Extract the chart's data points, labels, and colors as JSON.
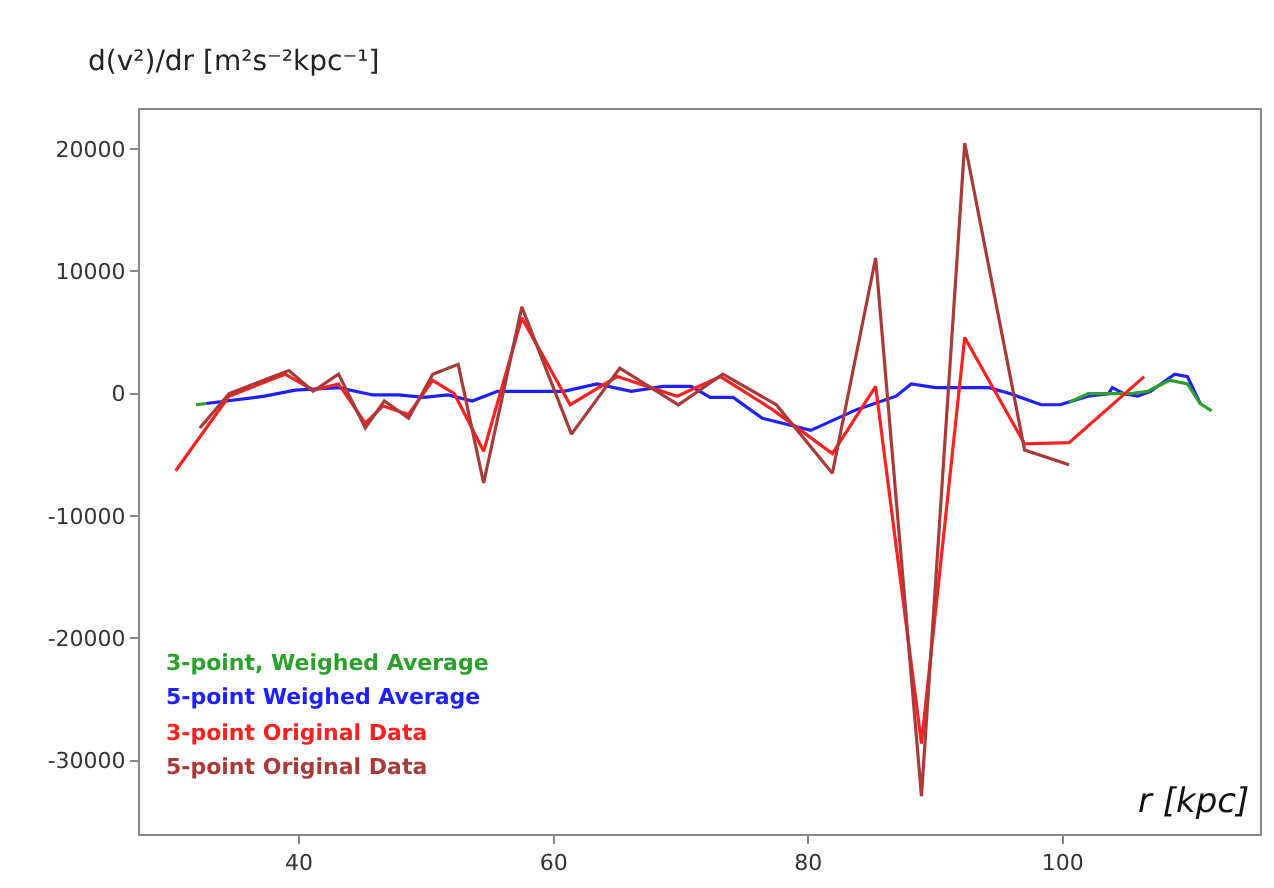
{
  "chart_data": {
    "type": "line",
    "ylabel": "d(v²)/dr [m²s⁻²kpc⁻¹]",
    "xlabel": "r [kpc]",
    "xlim": [
      27.5,
      115.5
    ],
    "xticks": [
      40,
      60,
      80,
      100
    ],
    "ylim": [
      -36000,
      23200
    ],
    "yticks": [
      -30000,
      -20000,
      -10000,
      0,
      10000,
      20000
    ],
    "legend": "bottom left",
    "series": [
      {
        "name": "3-point, Weighed Average",
        "color": "#2ca02c",
        "x": [
          31.9,
          32.7,
          66,
          100.5,
          102,
          103.6,
          105.2,
          106.7,
          108.4,
          109.8,
          110.8,
          111.7
        ],
        "values": [
          -900,
          -800,
          null,
          -700,
          0,
          0,
          0,
          200,
          1100,
          800,
          -800,
          -1400
        ]
      },
      {
        "name": "5-point Weighed Average",
        "color": "#2020ff",
        "x": [
          32.7,
          37.3,
          39.7,
          43.1,
          45.8,
          47.8,
          49.8,
          51.7,
          53.6,
          55.6,
          60.8,
          63.4,
          66.1,
          68.6,
          70.8,
          72.3,
          74.1,
          76.4,
          80.2,
          83.8,
          86.9,
          88.1,
          90,
          94.2,
          95.9,
          98.3,
          99.8,
          102,
          103.6,
          103.9,
          104.8,
          105.9,
          106.9,
          108.8,
          109.8,
          110.8
        ],
        "values": [
          -800,
          -200,
          300,
          500,
          -100,
          -100,
          -300,
          -100,
          -600,
          200,
          200,
          800,
          200,
          600,
          600,
          -300,
          -300,
          -2000,
          -3000,
          -1300,
          -200,
          800,
          500,
          500,
          0,
          -900,
          -900,
          -200,
          0,
          500,
          0,
          -200,
          200,
          1600,
          1400,
          -800
        ]
      },
      {
        "name": "3-point Original Data",
        "color": "#ff2020",
        "x": [
          30.3,
          34.5,
          38.9,
          41.1,
          43.1,
          45.2,
          46.6,
          48.6,
          50.5,
          52.2,
          54.5,
          57.5,
          61.3,
          65,
          69.7,
          73.1,
          77.2,
          81.9,
          85.3,
          88.9,
          92.3,
          97.0,
          100.5,
          106.4
        ],
        "values": [
          -6300,
          -200,
          1600,
          300,
          800,
          -2400,
          -1000,
          -1700,
          1100,
          0,
          -4700,
          6200,
          -900,
          1400,
          -200,
          1400,
          -1300,
          -4900,
          600,
          -28600,
          4600,
          -4100,
          -4000,
          1400
        ]
      },
      {
        "name": "5-point Original Data",
        "color": "#a83a3a",
        "x": [
          32.2,
          34.5,
          39.2,
          41.1,
          43.1,
          45.2,
          46.7,
          48.6,
          50.5,
          52.5,
          54.5,
          57.5,
          61.4,
          65.2,
          69.8,
          73.3,
          77.5,
          81.9,
          85.3,
          88.9,
          92.3,
          97.0,
          100.5
        ],
        "values": [
          -2800,
          0,
          1900,
          200,
          1600,
          -2800,
          -600,
          -2000,
          1600,
          2400,
          -7300,
          7100,
          -3300,
          2100,
          -900,
          1600,
          -900,
          -6500,
          11100,
          -32900,
          20500,
          -4600,
          -5800
        ]
      }
    ]
  }
}
